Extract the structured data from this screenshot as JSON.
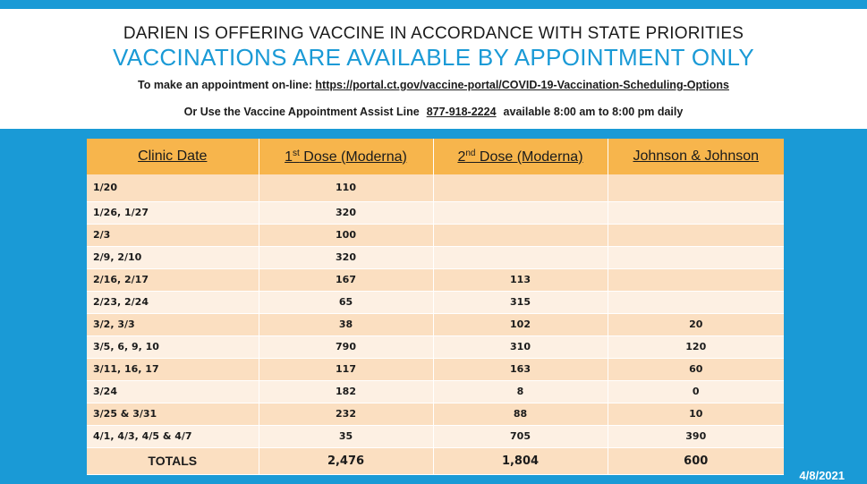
{
  "header": {
    "line1": "DARIEN IS OFFERING VACCINE IN ACCORDANCE WITH STATE PRIORITIES",
    "line2": "VACCINATIONS ARE AVAILABLE BY APPOINTMENT ONLY",
    "line3_prefix": "To make an appointment on-line: ",
    "line3_url": "https://portal.ct.gov/vaccine-portal/COVID-19-Vaccination-Scheduling-Options",
    "line4_prefix": "Or Use the Vaccine Appointment Assist Line",
    "line4_phone": "877-918-2224",
    "line4_suffix": "available 8:00 am to 8:00 pm daily"
  },
  "table": {
    "headers": {
      "clinic_date": "Clinic Date",
      "dose1_num": "1",
      "dose1_sup": "st",
      "dose1_rest": " Dose (Moderna)",
      "dose2_num": "2",
      "dose2_sup": "nd",
      "dose2_rest": " Dose (Moderna)",
      "jj": "Johnson & Johnson"
    },
    "rows": [
      {
        "date": "1/20",
        "dose1": "110",
        "dose2": "",
        "jj": ""
      },
      {
        "date": "1/26, 1/27",
        "dose1": "320",
        "dose2": "",
        "jj": ""
      },
      {
        "date": "2/3",
        "dose1": "100",
        "dose2": "",
        "jj": ""
      },
      {
        "date": "2/9, 2/10",
        "dose1": "320",
        "dose2": "",
        "jj": ""
      },
      {
        "date": "2/16, 2/17",
        "dose1": "167",
        "dose2": "113",
        "jj": ""
      },
      {
        "date": "2/23, 2/24",
        "dose1": "65",
        "dose2": "315",
        "jj": ""
      },
      {
        "date": "3/2, 3/3",
        "dose1": "38",
        "dose2": "102",
        "jj": "20"
      },
      {
        "date": "3/5, 6, 9, 10",
        "dose1": "790",
        "dose2": "310",
        "jj": "120"
      },
      {
        "date": "3/11, 16, 17",
        "dose1": "117",
        "dose2": "163",
        "jj": "60"
      },
      {
        "date": "3/24",
        "dose1": "182",
        "dose2": "8",
        "jj": "0"
      },
      {
        "date": "3/25 & 3/31",
        "dose1": "232",
        "dose2": "88",
        "jj": "10"
      },
      {
        "date": "4/1, 4/3, 4/5 & 4/7",
        "dose1": "35",
        "dose2": "705",
        "jj": "390"
      }
    ],
    "totals": {
      "label": "TOTALS",
      "dose1": "2,476",
      "dose2": "1,804",
      "jj": "600"
    }
  },
  "footer": {
    "date": "4/8/2021"
  },
  "colors": {
    "background": "#1a9ad6",
    "header_row": "#f7b54c",
    "row_dark": "#fbdfc1",
    "row_light": "#fdf0e3",
    "title_blue": "#1a9ad6"
  }
}
